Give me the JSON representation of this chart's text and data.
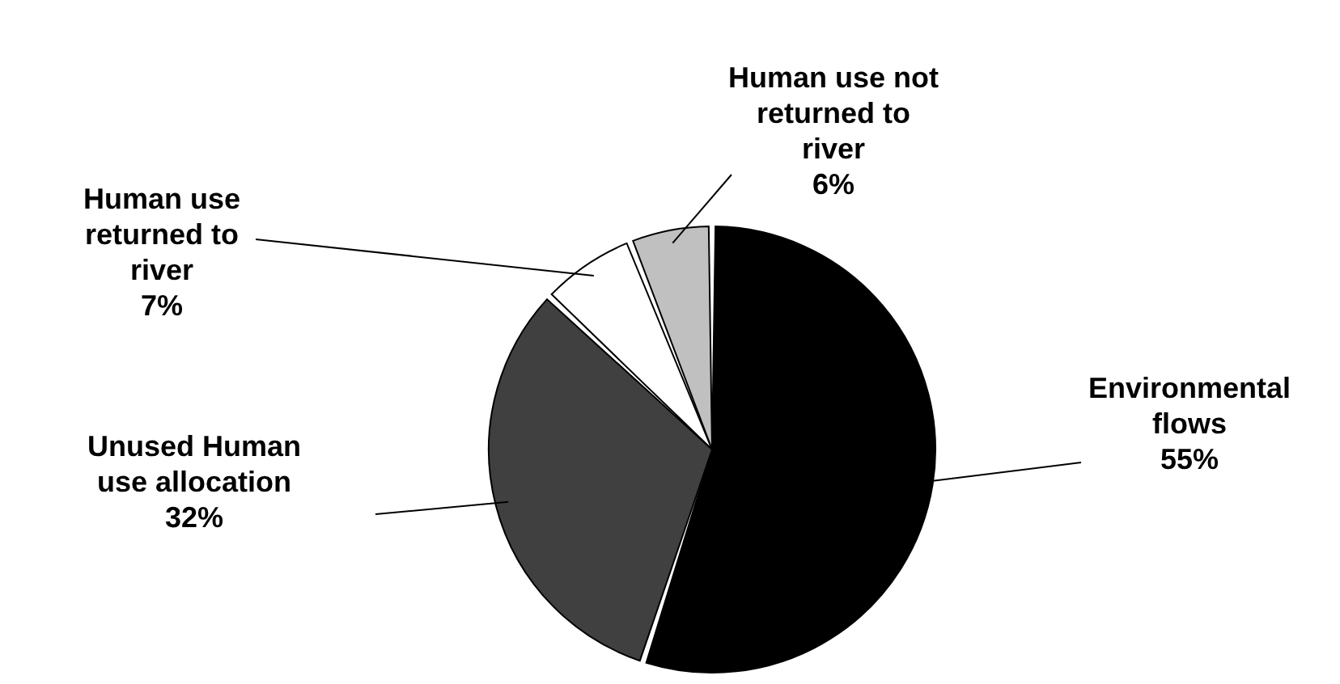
{
  "chart_data": {
    "type": "pie",
    "categories": [
      "Environmental flows",
      "Unused Human use allocation",
      "Human use returned to river",
      "Human use not returned to river"
    ],
    "values": [
      55,
      32,
      7,
      6
    ],
    "colors": [
      "#000000",
      "#404040",
      "#ffffff",
      "#c0c0c0"
    ],
    "value_labels": [
      "55%",
      "32%",
      "7%",
      "6%"
    ]
  }
}
